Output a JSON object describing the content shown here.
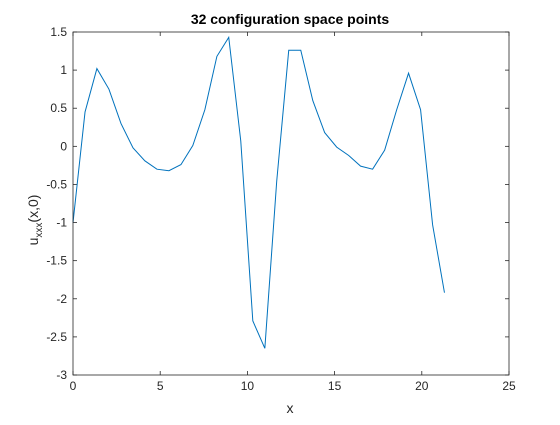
{
  "chart_data": {
    "type": "line",
    "title": "32 configuration space points",
    "xlabel": "x",
    "ylabel_base": "u",
    "ylabel_sub": "xxx",
    "ylabel_suffix": "(x,0)",
    "xlim": [
      0,
      25
    ],
    "ylim": [
      -3,
      1.5
    ],
    "xticks": [
      0,
      5,
      10,
      15,
      20,
      25
    ],
    "yticks": [
      -3,
      -2.5,
      -2,
      -1.5,
      -1,
      -0.5,
      0,
      0.5,
      1,
      1.5
    ],
    "xtick_labels": [
      "0",
      "5",
      "10",
      "15",
      "20",
      "25"
    ],
    "ytick_labels": [
      "-3",
      "-2.5",
      "-2",
      "-1.5",
      "-1",
      "-0.5",
      "0",
      "0.5",
      "1",
      "1.5"
    ],
    "grid": false,
    "line_color": "#0072BD",
    "series": [
      {
        "x": [
          0,
          0.69,
          1.37,
          2.06,
          2.75,
          3.44,
          4.12,
          4.81,
          5.5,
          6.19,
          6.87,
          7.56,
          8.25,
          8.93,
          9.62,
          10.31,
          11.0,
          11.68,
          12.37,
          13.06,
          13.75,
          14.43,
          15.12,
          15.81,
          16.49,
          17.18,
          17.87,
          18.56,
          19.24,
          19.93,
          20.62,
          21.3
        ],
        "values": [
          -1.0,
          0.45,
          1.02,
          0.75,
          0.3,
          -0.02,
          -0.19,
          -0.3,
          -0.32,
          -0.24,
          0.01,
          0.48,
          1.18,
          1.43,
          0.07,
          -2.29,
          -2.65,
          -0.46,
          1.26,
          1.26,
          0.6,
          0.18,
          -0.01,
          -0.12,
          -0.26,
          -0.3,
          -0.05,
          0.48,
          0.96,
          0.48,
          -1.03,
          -1.92
        ]
      }
    ]
  }
}
